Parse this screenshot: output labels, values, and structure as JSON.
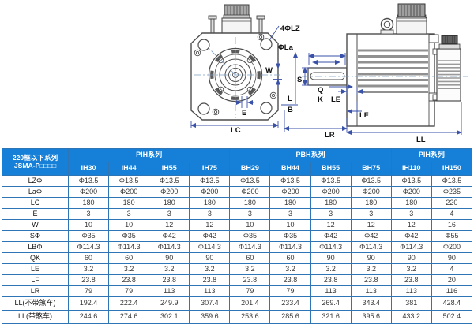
{
  "drawing": {
    "labels": {
      "four_lz": "4ΦLZ",
      "phi_la": "ΦLa",
      "w": "W",
      "e": "E",
      "lc": "LC",
      "s": "S",
      "q": "Q",
      "k": "K",
      "l": "L",
      "b": "B",
      "le": "LE",
      "lf": "LF",
      "lr": "LR",
      "ll": "LL"
    }
  },
  "table": {
    "corner_header_line1": "220框以下系列",
    "corner_header_line2": "JSMA-P□□□□",
    "groups": [
      {
        "label": "PIH系列",
        "span": 4
      },
      {
        "label": "PBH系列",
        "span": 4
      },
      {
        "label": "PIH系列",
        "span": 2
      }
    ],
    "models": [
      "IH30",
      "IH44",
      "IH55",
      "IH75",
      "BH29",
      "BH44",
      "BH55",
      "BH75",
      "IH110",
      "IH150"
    ],
    "rows": [
      {
        "label": "LZΦ",
        "values": [
          "Φ13.5",
          "Φ13.5",
          "Φ13.5",
          "Φ13.5",
          "Φ13.5",
          "Φ13.5",
          "Φ13.5",
          "Φ13.5",
          "Φ13.5",
          "Φ13.5"
        ]
      },
      {
        "label": "LaΦ",
        "values": [
          "Φ200",
          "Φ200",
          "Φ200",
          "Φ200",
          "Φ200",
          "Φ200",
          "Φ200",
          "Φ200",
          "Φ200",
          "Φ235"
        ]
      },
      {
        "label": "LC",
        "values": [
          "180",
          "180",
          "180",
          "180",
          "180",
          "180",
          "180",
          "180",
          "180",
          "220"
        ]
      },
      {
        "label": "E",
        "values": [
          "3",
          "3",
          "3",
          "3",
          "3",
          "3",
          "3",
          "3",
          "3",
          "4"
        ]
      },
      {
        "label": "W",
        "values": [
          "10",
          "10",
          "12",
          "12",
          "10",
          "10",
          "12",
          "12",
          "12",
          "16"
        ]
      },
      {
        "label": "SΦ",
        "values": [
          "Φ35",
          "Φ35",
          "Φ42",
          "Φ42",
          "Φ35",
          "Φ35",
          "Φ42",
          "Φ42",
          "Φ42",
          "Φ55"
        ]
      },
      {
        "label": "LBΦ",
        "values": [
          "Φ114.3",
          "Φ114.3",
          "Φ114.3",
          "Φ114.3",
          "Φ114.3",
          "Φ114.3",
          "Φ114.3",
          "Φ114.3",
          "Φ114.3",
          "Φ200"
        ]
      },
      {
        "label": "QK",
        "values": [
          "60",
          "60",
          "90",
          "90",
          "60",
          "60",
          "90",
          "90",
          "90",
          "90"
        ]
      },
      {
        "label": "LE",
        "values": [
          "3.2",
          "3.2",
          "3.2",
          "3.2",
          "3.2",
          "3.2",
          "3.2",
          "3.2",
          "3.2",
          "4"
        ]
      },
      {
        "label": "LF",
        "values": [
          "23.8",
          "23.8",
          "23.8",
          "23.8",
          "23.8",
          "23.8",
          "23.8",
          "23.8",
          "23.8",
          "20"
        ]
      },
      {
        "label": "LR",
        "values": [
          "79",
          "79",
          "113",
          "113",
          "79",
          "79",
          "113",
          "113",
          "113",
          "116"
        ]
      },
      {
        "label": "LL(不带煞车)",
        "values": [
          "192.4",
          "222.4",
          "249.9",
          "307.4",
          "201.4",
          "233.4",
          "269.4",
          "343.4",
          "381",
          "428.4"
        ]
      },
      {
        "label": "LL(带煞车)",
        "values": [
          "244.6",
          "274.6",
          "302.1",
          "359.6",
          "253.6",
          "285.6",
          "321.6",
          "395.6",
          "433.2",
          "502.4"
        ]
      }
    ]
  },
  "colors": {
    "header_bg": "#1680d8",
    "grid_border": "#2e75b6",
    "dimension_line": "#3a51a8",
    "outline_gray": "#4d4d4d"
  }
}
